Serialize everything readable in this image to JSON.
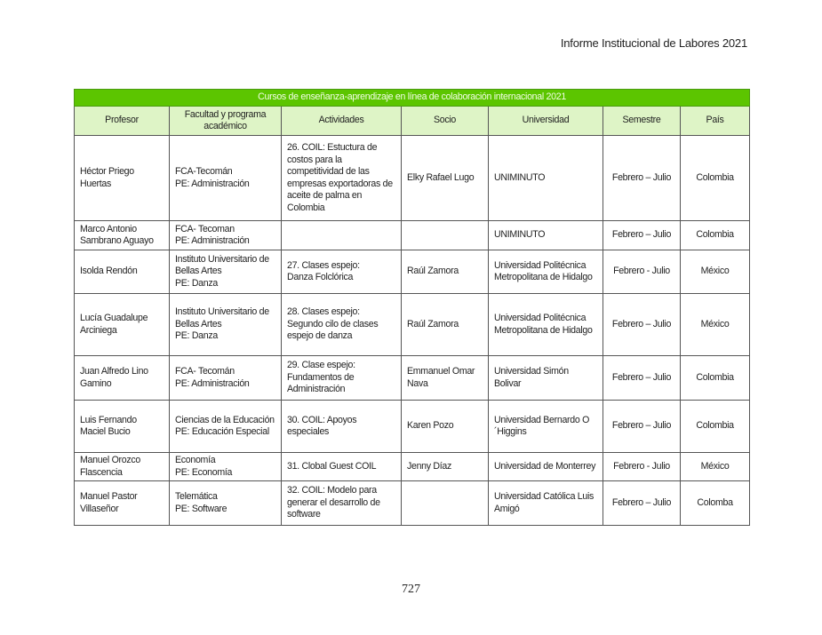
{
  "header": {
    "running_title": "Informe Institucional de Labores 2021"
  },
  "table": {
    "title": "Cursos de enseñanza-aprendizaje en línea de colaboración internacional 2021",
    "title_color": "#5cc500",
    "header_color": "#def4c6",
    "columns": [
      "Profesor",
      "Facultad y programa\nacadémico",
      "Actividades",
      "Socio",
      "Universidad",
      "Semestre",
      "País"
    ],
    "rows": [
      [
        "Héctor Priego\nHuertas",
        "FCA-Tecomán\nPE: Administración",
        "26. COIL: Estuctura de costos para la competitividad de las empresas exportadoras de aceite de palma en Colombia",
        "Elky Rafael Lugo",
        "UNIMINUTO",
        "Febrero – Julio",
        "Colombia"
      ],
      [
        "Marco Antonio\nSambrano Aguayo",
        "FCA- Tecoman\nPE: Administración",
        "",
        "",
        "UNIMINUTO",
        "Febrero – Julio",
        "Colombia"
      ],
      [
        "Isolda Rendón",
        "Instituto Universitario de Bellas Artes\nPE: Danza",
        "27. Clases espejo:\nDanza Folclórica",
        "Raúl Zamora",
        "Universidad Politécnica Metropolitana de Hidalgo",
        "Febrero - Julio",
        "México"
      ],
      [
        "Lucía Guadalupe\nArciniega",
        "Instituto Universitario de Bellas Artes\nPE: Danza",
        "28. Clases espejo:\nSegundo cilo de clases espejo de danza",
        "Raúl Zamora",
        "Universidad Politécnica Metropolitana de Hidalgo",
        "Febrero – Julio",
        "México"
      ],
      [
        "Juan Alfredo Lino\nGamino",
        "FCA- Tecomán\nPE: Administración",
        "29. Clase espejo:\nFundamentos de Administración",
        "Emmanuel Omar Nava",
        "Universidad Simón Bolivar",
        "Febrero – Julio",
        "Colombia"
      ],
      [
        "Luis Fernando\nMaciel Bucio",
        "Ciencias de la Educación\nPE: Educación Especial",
        "30. COIL: Apoyos especiales",
        "Karen Pozo",
        "Universidad Bernardo O´Higgins",
        "Febrero – Julio",
        "Colombia"
      ],
      [
        "Manuel Orozco\nFlascencia",
        "Economía\nPE: Economía",
        "31. Clobal Guest COIL",
        "Jenny Díaz",
        "Universidad de Monterrey",
        "Febrero - Julio",
        "México"
      ],
      [
        "Manuel Pastor\nVillaseñor",
        "Telemática\nPE: Software",
        "32. COIL: Modelo para generar el desarrollo de software",
        "",
        "Universidad Católica Luis Amigó",
        "Febrero – Julio",
        "Colomba"
      ]
    ]
  },
  "footer": {
    "page_number": "727"
  }
}
